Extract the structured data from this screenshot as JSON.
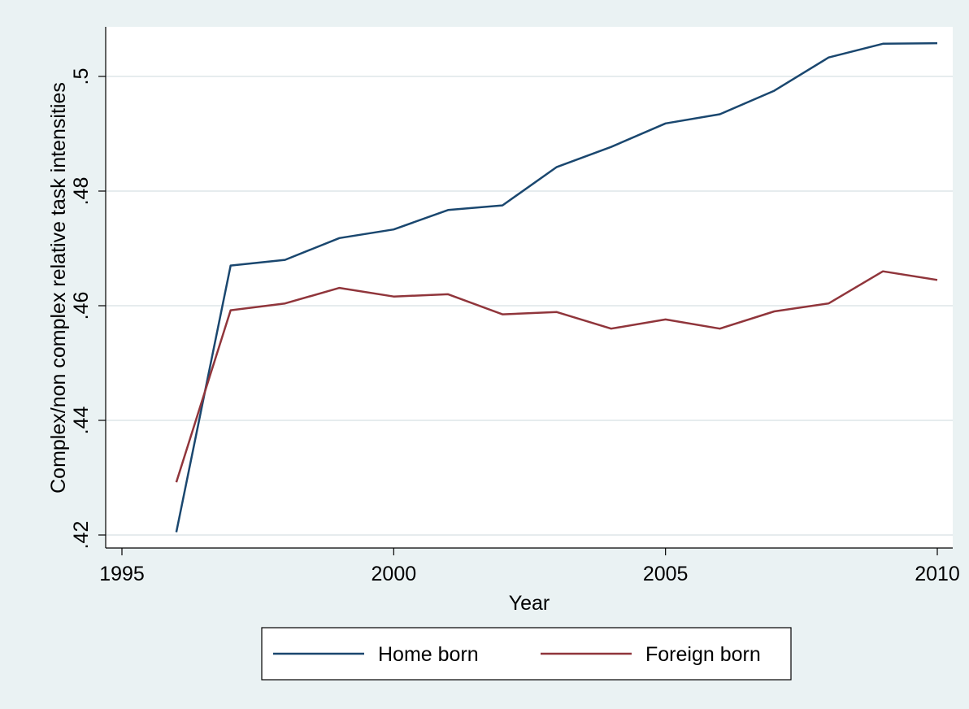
{
  "chart_data": {
    "type": "line",
    "title": "",
    "xlabel": "Year",
    "ylabel": "Complex/non complex relative task intensities",
    "x": [
      1996,
      1997,
      1998,
      1999,
      2000,
      2001,
      2002,
      2003,
      2004,
      2005,
      2006,
      2007,
      2008,
      2009,
      2010
    ],
    "xlim": [
      1995,
      2010
    ],
    "ylim": [
      0.42,
      0.508
    ],
    "x_ticks": [
      {
        "value": 1995,
        "label": "1995"
      },
      {
        "value": 2000,
        "label": "2000"
      },
      {
        "value": 2005,
        "label": "2005"
      },
      {
        "value": 2010,
        "label": "2010"
      }
    ],
    "y_ticks": [
      {
        "value": 0.42,
        "label": ".42"
      },
      {
        "value": 0.44,
        "label": ".44"
      },
      {
        "value": 0.46,
        "label": ".46"
      },
      {
        "value": 0.48,
        "label": ".48"
      },
      {
        "value": 0.5,
        "label": ".5"
      }
    ],
    "grid": true,
    "legend_position": "bottom",
    "series": [
      {
        "name": "Home born",
        "color": "#1a476f",
        "values": [
          0.4205,
          0.467,
          0.468,
          0.4718,
          0.4733,
          0.4767,
          0.4775,
          0.4842,
          0.4877,
          0.4918,
          0.4934,
          0.4975,
          0.5033,
          0.5057,
          0.5058
        ]
      },
      {
        "name": "Foreign born",
        "color": "#90353b",
        "values": [
          0.4292,
          0.4592,
          0.4604,
          0.4631,
          0.4616,
          0.462,
          0.4585,
          0.4589,
          0.456,
          0.4576,
          0.456,
          0.459,
          0.4604,
          0.466,
          0.4645
        ]
      }
    ]
  }
}
